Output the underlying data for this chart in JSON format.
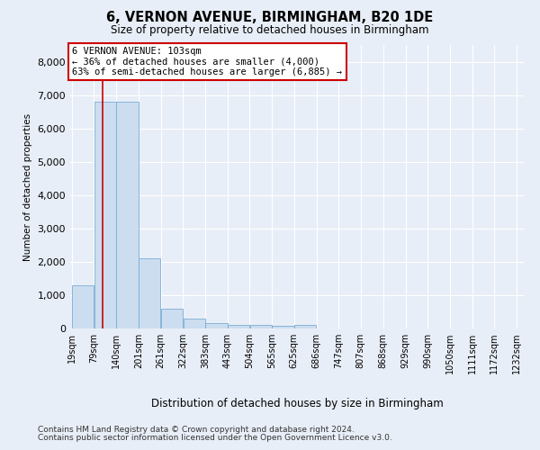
{
  "title": "6, VERNON AVENUE, BIRMINGHAM, B20 1DE",
  "subtitle": "Size of property relative to detached houses in Birmingham",
  "xlabel": "Distribution of detached houses by size in Birmingham",
  "ylabel": "Number of detached properties",
  "bar_color": "#ccddf0",
  "bar_edge_color": "#7aadd4",
  "vline_color": "#cc0000",
  "vline_x": 103,
  "annotation_title": "6 VERNON AVENUE: 103sqm",
  "annotation_line1": "← 36% of detached houses are smaller (4,000)",
  "annotation_line2": "63% of semi-detached houses are larger (6,885) →",
  "footer1": "Contains HM Land Registry data © Crown copyright and database right 2024.",
  "footer2": "Contains public sector information licensed under the Open Government Licence v3.0.",
  "bin_edges": [
    19,
    79,
    140,
    201,
    261,
    322,
    383,
    443,
    504,
    565,
    625,
    686,
    747,
    807,
    868,
    929,
    990,
    1050,
    1111,
    1172,
    1232
  ],
  "bin_values": [
    1300,
    6800,
    6800,
    2100,
    600,
    300,
    150,
    100,
    100,
    80,
    100,
    0,
    0,
    0,
    0,
    0,
    0,
    0,
    0,
    0
  ],
  "ylim": [
    0,
    8500
  ],
  "yticks": [
    0,
    1000,
    2000,
    3000,
    4000,
    5000,
    6000,
    7000,
    8000
  ],
  "background_color": "#e8eef7",
  "plot_bg_color": "#e8eef7"
}
